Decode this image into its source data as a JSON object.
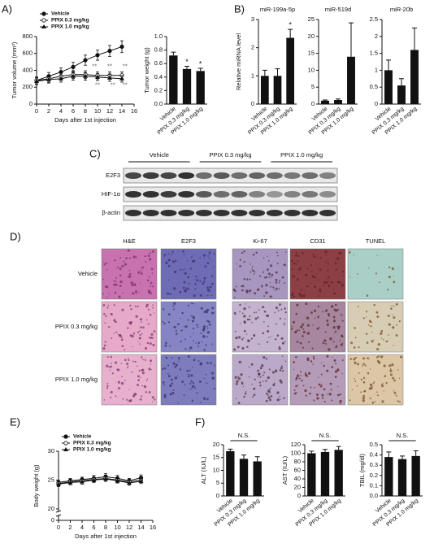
{
  "panels": [
    "A)",
    "B)",
    "C)",
    "D)",
    "E)",
    "F)"
  ],
  "western_blot": {
    "groups": [
      "Vehicle",
      "PPIX 0.3 mg/kg",
      "PPIX 1.0 mg/kg"
    ],
    "rows": [
      "E2F3",
      "HIF-1α",
      "β-actin"
    ]
  },
  "histology": {
    "columns": [
      "H&E",
      "E2F3",
      "Ki-67",
      "CD31",
      "TUNEL"
    ],
    "rows": [
      "Vehicle",
      "PPIX 0.3 mg/kg",
      "PPIX 1.0 mg/kg"
    ]
  },
  "chart_data": [
    {
      "type": "line",
      "x_label": "Days after 1st injection",
      "y_label": "Tumor volume (mm³)",
      "x": [
        0,
        2,
        4,
        6,
        8,
        10,
        12,
        14
      ],
      "xlim": [
        0,
        16
      ],
      "xticks": [
        0,
        2,
        4,
        6,
        8,
        10,
        12,
        14,
        16
      ],
      "ylim": [
        0,
        800
      ],
      "yticks": [
        0,
        200,
        400,
        600,
        800
      ],
      "series": [
        {
          "name": "Vehicle",
          "color": "#111111",
          "marker": "filled-circle",
          "values": [
            280,
            330,
            380,
            440,
            520,
            580,
            630,
            680
          ],
          "errors": [
            40,
            45,
            50,
            55,
            60,
            60,
            65,
            70
          ]
        },
        {
          "name": "PPIX 0.3 mg/kg",
          "color": "#111111",
          "marker": "open-circle",
          "values": [
            280,
            300,
            330,
            350,
            350,
            340,
            340,
            340
          ],
          "errors": [
            40,
            40,
            45,
            45,
            45,
            40,
            40,
            40
          ]
        },
        {
          "name": "PPIX 1.0 mg/kg",
          "color": "#111111",
          "marker": "triangle",
          "values": [
            270,
            290,
            300,
            330,
            330,
            320,
            310,
            300
          ],
          "errors": [
            40,
            40,
            40,
            45,
            45,
            40,
            40,
            40
          ]
        }
      ],
      "legend": "top-left",
      "annotations": [
        {
          "text": "**",
          "x": 9.5,
          "y": 440
        },
        {
          "text": "**",
          "x": 12,
          "y": 440
        },
        {
          "text": "**",
          "x": 14.5,
          "y": 440
        },
        {
          "text": "**",
          "x": 10,
          "y": 220
        },
        {
          "text": "**",
          "x": 12.5,
          "y": 220
        },
        {
          "text": "**",
          "x": 14.5,
          "y": 220
        }
      ]
    },
    {
      "type": "bar",
      "y_label": "Tumor weight (g)",
      "categories": [
        "Vehicle",
        "PPIX 0.3 mg/kg",
        "PPIX 1.0 mg/kg"
      ],
      "values": [
        0.72,
        0.52,
        0.49
      ],
      "errors": [
        0.05,
        0.04,
        0.04
      ],
      "value_annotations": [
        null,
        "*",
        "*"
      ],
      "color": "#111111",
      "ylim": [
        0,
        1.0
      ],
      "yticks": [
        {
          "value": 0,
          "label": "0.0"
        },
        0.2,
        0.4,
        0.6,
        0.8,
        {
          "value": 1,
          "label": "1.0"
        }
      ]
    },
    {
      "type": "bar",
      "title": "miR-199a-5p",
      "y_label": "Relative miRNA level",
      "categories": [
        "Vehicle",
        "PPIX 0.3 mg/kg",
        "PPIX 1.0 mg/kg"
      ],
      "values": [
        1,
        1,
        2.35
      ],
      "errors": [
        0.2,
        0.25,
        0.3
      ],
      "value_annotations": [
        null,
        null,
        "*"
      ],
      "color": "#111111",
      "ylim": [
        0,
        3
      ],
      "yticks": [
        0,
        1,
        2,
        3
      ]
    },
    {
      "type": "bar",
      "title": "miR-519d",
      "categories": [
        "Vehicle",
        "PPIX 0.3 mg/kg",
        "PPIX 1.0 mg/kg"
      ],
      "values": [
        1,
        1.2,
        14
      ],
      "errors": [
        0.2,
        0.3,
        10
      ],
      "color": "#111111",
      "ylim": [
        0,
        25
      ],
      "yticks": [
        0,
        5,
        10,
        15,
        20,
        25
      ]
    },
    {
      "type": "bar",
      "title": "miR-20b",
      "categories": [
        "Vehicle",
        "PPIX 0.3 mg/kg",
        "PPIX 1.0 mg/kg"
      ],
      "values": [
        1,
        0.55,
        1.6
      ],
      "errors": [
        0.3,
        0.2,
        0.65
      ],
      "color": "#111111",
      "ylim": [
        0,
        2.5
      ],
      "yticks": [
        0,
        0.5,
        1,
        1.5,
        2,
        2.5
      ]
    },
    {
      "type": "line",
      "x_label": "Days after 1st injection",
      "y_label": "Body weight (g)",
      "x": [
        0,
        2,
        4,
        6,
        8,
        10,
        12,
        14
      ],
      "xlim": [
        0,
        16
      ],
      "xticks": [
        0,
        2,
        4,
        6,
        8,
        10,
        12,
        14,
        16
      ],
      "ylim": [
        20,
        30
      ],
      "yticks": [
        20,
        25,
        30
      ],
      "y_break_tick": 0,
      "series": [
        {
          "name": "Vehicle",
          "color": "#111111",
          "marker": "filled-circle",
          "values": [
            24.6,
            24.9,
            25.1,
            25.3,
            25.6,
            25.3,
            24.9,
            25.4
          ],
          "errors": [
            0.4,
            0.4,
            0.4,
            0.5,
            0.5,
            0.5,
            0.4,
            0.5
          ]
        },
        {
          "name": "PPIX 0.3 mg/kg",
          "color": "#111111",
          "marker": "open-circle",
          "values": [
            24.4,
            24.7,
            24.9,
            25.1,
            25.3,
            25.0,
            24.7,
            25.0
          ],
          "errors": [
            0.4,
            0.4,
            0.4,
            0.4,
            0.5,
            0.4,
            0.4,
            0.4
          ]
        },
        {
          "name": "PPIX 1.0 mg/kg",
          "color": "#111111",
          "marker": "triangle",
          "values": [
            24.3,
            24.6,
            24.7,
            25.0,
            25.2,
            24.9,
            24.5,
            24.8
          ],
          "errors": [
            0.4,
            0.4,
            0.4,
            0.4,
            0.4,
            0.4,
            0.4,
            0.4
          ]
        }
      ],
      "legend": "top-left"
    },
    {
      "type": "bar",
      "y_label": "ALT (IU/L)",
      "annotation": "N.S.",
      "categories": [
        "Vehicle",
        "PPIX 0.3 mg/kg",
        "PPIX 1.0 mg/kg"
      ],
      "values": [
        17.5,
        14.5,
        13.5
      ],
      "errors": [
        0.8,
        1.5,
        1.8
      ],
      "color": "#111111",
      "ylim": [
        0,
        20
      ],
      "yticks": [
        0,
        5,
        10,
        15,
        20
      ]
    },
    {
      "type": "bar",
      "y_label": "AST (IU/L)",
      "annotation": "N.S.",
      "categories": [
        "Vehicle",
        "PPIX 0.3 mg/kg",
        "PPIX 1.0 mg/kg"
      ],
      "values": [
        100,
        103,
        108
      ],
      "errors": [
        5,
        6,
        8
      ],
      "color": "#111111",
      "ylim": [
        0,
        120
      ],
      "yticks": [
        0,
        20,
        40,
        60,
        80,
        100,
        120
      ]
    },
    {
      "type": "bar",
      "y_label": "TBIL (mg/dl)",
      "annotation": "N.S.",
      "categories": [
        "Vehicle",
        "PPIX 0.3 mg/kg",
        "PPIX 1.0 mg/kg"
      ],
      "values": [
        0.38,
        0.36,
        0.39
      ],
      "errors": [
        0.05,
        0.03,
        0.05
      ],
      "color": "#111111",
      "ylim": [
        0,
        0.5
      ],
      "yticks": [
        {
          "value": 0,
          "label": "0.0"
        },
        0.1,
        0.2,
        0.3,
        0.4,
        0.5
      ]
    }
  ]
}
